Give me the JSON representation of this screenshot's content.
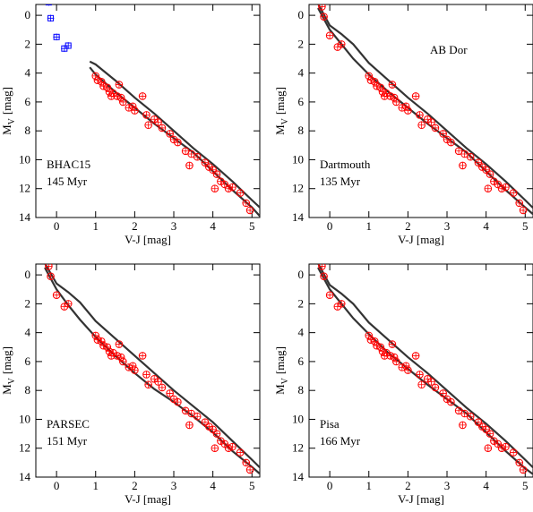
{
  "chart_data": [
    {
      "type": "scatter",
      "annotation": [
        "BHAC15",
        "145 Myr"
      ],
      "x_label": "V-J [mag]",
      "y_label": {
        "main": "M",
        "sub": "V",
        "unit": "[mag]"
      },
      "xlim": [
        -0.53,
        5.2
      ],
      "ylim": [
        -0.75,
        14
      ],
      "y_inverted": true,
      "xticks": [
        0,
        1,
        2,
        3,
        4,
        5
      ],
      "yticks": [
        0,
        2,
        4,
        6,
        8,
        10,
        12,
        14
      ],
      "series": [
        {
          "marker": "line",
          "color": "#333333",
          "x": [
            0.85,
            1,
            1.5,
            2,
            2.5,
            3,
            3.5,
            4,
            4.5,
            5,
            5.2
          ],
          "values": [
            3.6,
            4.1,
            5.3,
            6.4,
            7.5,
            8.5,
            9.5,
            10.8,
            12.1,
            13.3,
            13.9
          ]
        },
        {
          "marker": "line",
          "color": "#333333",
          "x": [
            0.85,
            1,
            1.5,
            2,
            2.5,
            3,
            3.5,
            4,
            4.5,
            5,
            5.2
          ],
          "values": [
            3.2,
            3.4,
            4.5,
            5.7,
            6.8,
            8.0,
            9.2,
            10.3,
            11.5,
            12.8,
            13.3
          ]
        },
        {
          "marker": "square",
          "color": "#0000ff",
          "x": [
            -0.2,
            -0.15,
            0.0,
            0.2,
            0.3
          ],
          "values": [
            -0.9,
            0.2,
            1.5,
            2.3,
            2.1
          ]
        },
        {
          "marker": "circle",
          "color": "#ff0000",
          "x": [
            1.0,
            1.05,
            1.15,
            1.2,
            1.3,
            1.35,
            1.4,
            1.45,
            1.55,
            1.6,
            1.65,
            1.7,
            1.85,
            1.95,
            2.0,
            2.2,
            2.3,
            2.35,
            2.5,
            2.6,
            2.7,
            2.9,
            3.0,
            3.1,
            3.3,
            3.4,
            3.45,
            3.6,
            3.8,
            3.9,
            4.0,
            4.1,
            4.2,
            4.3,
            4.4,
            4.5,
            4.7,
            4.85,
            4.95,
            4.05
          ],
          "values": [
            4.2,
            4.5,
            4.6,
            4.9,
            5.0,
            5.3,
            5.6,
            5.4,
            5.6,
            4.8,
            5.7,
            6.0,
            6.4,
            6.3,
            6.6,
            5.6,
            6.9,
            7.6,
            7.2,
            7.4,
            7.8,
            8.2,
            8.6,
            8.8,
            9.4,
            10.4,
            9.6,
            9.8,
            10.2,
            10.5,
            10.7,
            11.0,
            11.5,
            11.7,
            12.0,
            11.9,
            12.3,
            13.0,
            13.5,
            12.0
          ]
        }
      ]
    },
    {
      "type": "scatter",
      "label": "AB Dor",
      "annotation": [
        "Dartmouth",
        "135 Myr"
      ],
      "x_label": "V-J [mag]",
      "y_label": {
        "main": "M",
        "sub": "V",
        "unit": "[mag]"
      },
      "xlim": [
        -0.53,
        5.2
      ],
      "ylim": [
        -0.75,
        14
      ],
      "y_inverted": true,
      "xticks": [
        0,
        1,
        2,
        3,
        4,
        5
      ],
      "yticks": [
        0,
        2,
        4,
        6,
        8,
        10,
        12,
        14
      ],
      "series": [
        {
          "marker": "line",
          "color": "#333333",
          "x": [
            -0.3,
            0,
            0.3,
            0.6,
            1,
            1.5,
            2,
            2.5,
            3,
            3.5,
            4,
            4.5,
            5,
            5.3
          ],
          "values": [
            -0.5,
            1.0,
            2.0,
            3.0,
            4.1,
            5.3,
            6.4,
            7.5,
            8.5,
            9.5,
            10.8,
            12.1,
            13.3,
            14
          ]
        },
        {
          "marker": "line",
          "color": "#333333",
          "x": [
            -0.3,
            0,
            0.3,
            0.6,
            1,
            1.5,
            2,
            2.5,
            3,
            3.5,
            4,
            4.5,
            5,
            5.3
          ],
          "values": [
            -0.8,
            0.7,
            1.3,
            2.0,
            3.3,
            4.5,
            5.7,
            6.8,
            8.0,
            9.2,
            10.3,
            11.5,
            12.8,
            13.6
          ]
        },
        {
          "marker": "circle",
          "color": "#ff0000",
          "x": [
            -0.2,
            -0.15,
            0.0,
            0.2,
            0.3,
            1.0,
            1.05,
            1.15,
            1.2,
            1.3,
            1.35,
            1.4,
            1.45,
            1.55,
            1.6,
            1.65,
            1.7,
            1.85,
            1.95,
            2.0,
            2.2,
            2.3,
            2.35,
            2.5,
            2.6,
            2.7,
            2.9,
            3.0,
            3.1,
            3.3,
            3.4,
            3.45,
            3.6,
            3.8,
            3.9,
            4.0,
            4.1,
            4.2,
            4.3,
            4.4,
            4.5,
            4.7,
            4.85,
            4.95,
            4.05
          ],
          "values": [
            -0.6,
            0.1,
            1.4,
            2.2,
            2.0,
            4.2,
            4.5,
            4.6,
            4.9,
            5.0,
            5.3,
            5.6,
            5.4,
            5.6,
            4.8,
            5.7,
            6.0,
            6.4,
            6.3,
            6.6,
            5.6,
            6.9,
            7.6,
            7.2,
            7.4,
            7.8,
            8.2,
            8.6,
            8.8,
            9.4,
            10.4,
            9.6,
            9.8,
            10.2,
            10.5,
            10.7,
            11.0,
            11.5,
            11.7,
            12.0,
            11.9,
            12.3,
            13.0,
            13.5,
            12.0
          ]
        }
      ]
    },
    {
      "type": "scatter",
      "annotation": [
        "PARSEC",
        "151 Myr"
      ],
      "x_label": "V-J [mag]",
      "y_label": {
        "main": "M",
        "sub": "V",
        "unit": "[mag]"
      },
      "xlim": [
        -0.53,
        5.2
      ],
      "ylim": [
        -0.75,
        14
      ],
      "y_inverted": true,
      "xticks": [
        0,
        1,
        2,
        3,
        4,
        5
      ],
      "yticks": [
        0,
        2,
        4,
        6,
        8,
        10,
        12,
        14
      ],
      "series": [
        {
          "marker": "line",
          "color": "#333333",
          "x": [
            -0.3,
            0,
            0.3,
            0.6,
            1,
            1.5,
            2,
            2.5,
            3,
            3.5,
            4,
            4.5,
            5,
            5.3
          ],
          "values": [
            -0.5,
            1.0,
            2.1,
            3.1,
            4.3,
            5.6,
            6.8,
            7.9,
            8.8,
            9.8,
            10.9,
            12.2,
            13.3,
            14
          ]
        },
        {
          "marker": "line",
          "color": "#333333",
          "x": [
            -0.3,
            0,
            0.3,
            0.6,
            1,
            1.5,
            2,
            2.5,
            3,
            3.5,
            4,
            4.5,
            5,
            5.3
          ],
          "values": [
            -0.8,
            0.6,
            1.2,
            1.9,
            3.2,
            4.4,
            5.6,
            6.8,
            8.0,
            9.1,
            10.2,
            11.5,
            12.8,
            13.6
          ]
        },
        {
          "marker": "circle",
          "color": "#ff0000",
          "x": [
            -0.2,
            -0.15,
            0.0,
            0.2,
            0.3,
            1.0,
            1.05,
            1.15,
            1.2,
            1.3,
            1.35,
            1.4,
            1.45,
            1.55,
            1.6,
            1.65,
            1.7,
            1.85,
            1.95,
            2.0,
            2.2,
            2.3,
            2.35,
            2.5,
            2.6,
            2.7,
            2.9,
            3.0,
            3.1,
            3.3,
            3.4,
            3.45,
            3.6,
            3.8,
            3.9,
            4.0,
            4.1,
            4.2,
            4.3,
            4.4,
            4.5,
            4.7,
            4.85,
            4.95,
            4.05
          ],
          "values": [
            -0.6,
            0.1,
            1.4,
            2.2,
            2.0,
            4.2,
            4.5,
            4.6,
            4.9,
            5.0,
            5.3,
            5.6,
            5.4,
            5.6,
            4.8,
            5.7,
            6.0,
            6.4,
            6.3,
            6.6,
            5.6,
            6.9,
            7.6,
            7.2,
            7.4,
            7.8,
            8.2,
            8.6,
            8.8,
            9.4,
            10.4,
            9.6,
            9.8,
            10.2,
            10.5,
            10.7,
            11.0,
            11.5,
            11.7,
            12.0,
            11.9,
            12.3,
            13.0,
            13.5,
            12.0
          ]
        }
      ]
    },
    {
      "type": "scatter",
      "annotation": [
        "Pisa",
        "166 Myr"
      ],
      "x_label": "V-J [mag]",
      "y_label": {
        "main": "M",
        "sub": "V",
        "unit": "[mag]"
      },
      "xlim": [
        -0.53,
        5.2
      ],
      "ylim": [
        -0.75,
        14
      ],
      "y_inverted": true,
      "xticks": [
        0,
        1,
        2,
        3,
        4,
        5
      ],
      "yticks": [
        0,
        2,
        4,
        6,
        8,
        10,
        12,
        14
      ],
      "series": [
        {
          "marker": "line",
          "color": "#333333",
          "x": [
            -0.3,
            0,
            0.3,
            0.6,
            1,
            1.5,
            2,
            2.5,
            3,
            3.5,
            4,
            4.5,
            5,
            5.3
          ],
          "values": [
            -0.5,
            1.0,
            2.0,
            3.0,
            4.1,
            5.4,
            6.5,
            7.6,
            8.6,
            9.6,
            10.9,
            12.2,
            13.4,
            14
          ]
        },
        {
          "marker": "line",
          "color": "#333333",
          "x": [
            -0.3,
            0,
            0.3,
            0.6,
            1,
            1.5,
            2,
            2.5,
            3,
            3.5,
            4,
            4.5,
            5,
            5.3
          ],
          "values": [
            -0.8,
            0.7,
            1.3,
            2.0,
            3.3,
            4.5,
            5.7,
            6.8,
            8.0,
            9.2,
            10.3,
            11.5,
            12.8,
            13.6
          ]
        },
        {
          "marker": "circle",
          "color": "#ff0000",
          "x": [
            -0.2,
            -0.15,
            0.0,
            0.2,
            0.3,
            1.0,
            1.05,
            1.15,
            1.2,
            1.3,
            1.35,
            1.4,
            1.45,
            1.55,
            1.6,
            1.65,
            1.7,
            1.85,
            1.95,
            2.0,
            2.2,
            2.3,
            2.35,
            2.5,
            2.6,
            2.7,
            2.9,
            3.0,
            3.1,
            3.3,
            3.4,
            3.45,
            3.6,
            3.8,
            3.9,
            4.0,
            4.1,
            4.2,
            4.3,
            4.4,
            4.5,
            4.7,
            4.85,
            4.95,
            4.05
          ],
          "values": [
            -0.6,
            0.1,
            1.4,
            2.2,
            2.0,
            4.2,
            4.5,
            4.6,
            4.9,
            5.0,
            5.3,
            5.6,
            5.4,
            5.6,
            4.8,
            5.7,
            6.0,
            6.4,
            6.3,
            6.6,
            5.6,
            6.9,
            7.6,
            7.2,
            7.4,
            7.8,
            8.2,
            8.6,
            8.8,
            9.4,
            10.4,
            9.6,
            9.8,
            10.2,
            10.5,
            10.7,
            11.0,
            11.5,
            11.7,
            12.0,
            11.9,
            12.3,
            13.0,
            13.5,
            12.0
          ]
        }
      ]
    }
  ]
}
